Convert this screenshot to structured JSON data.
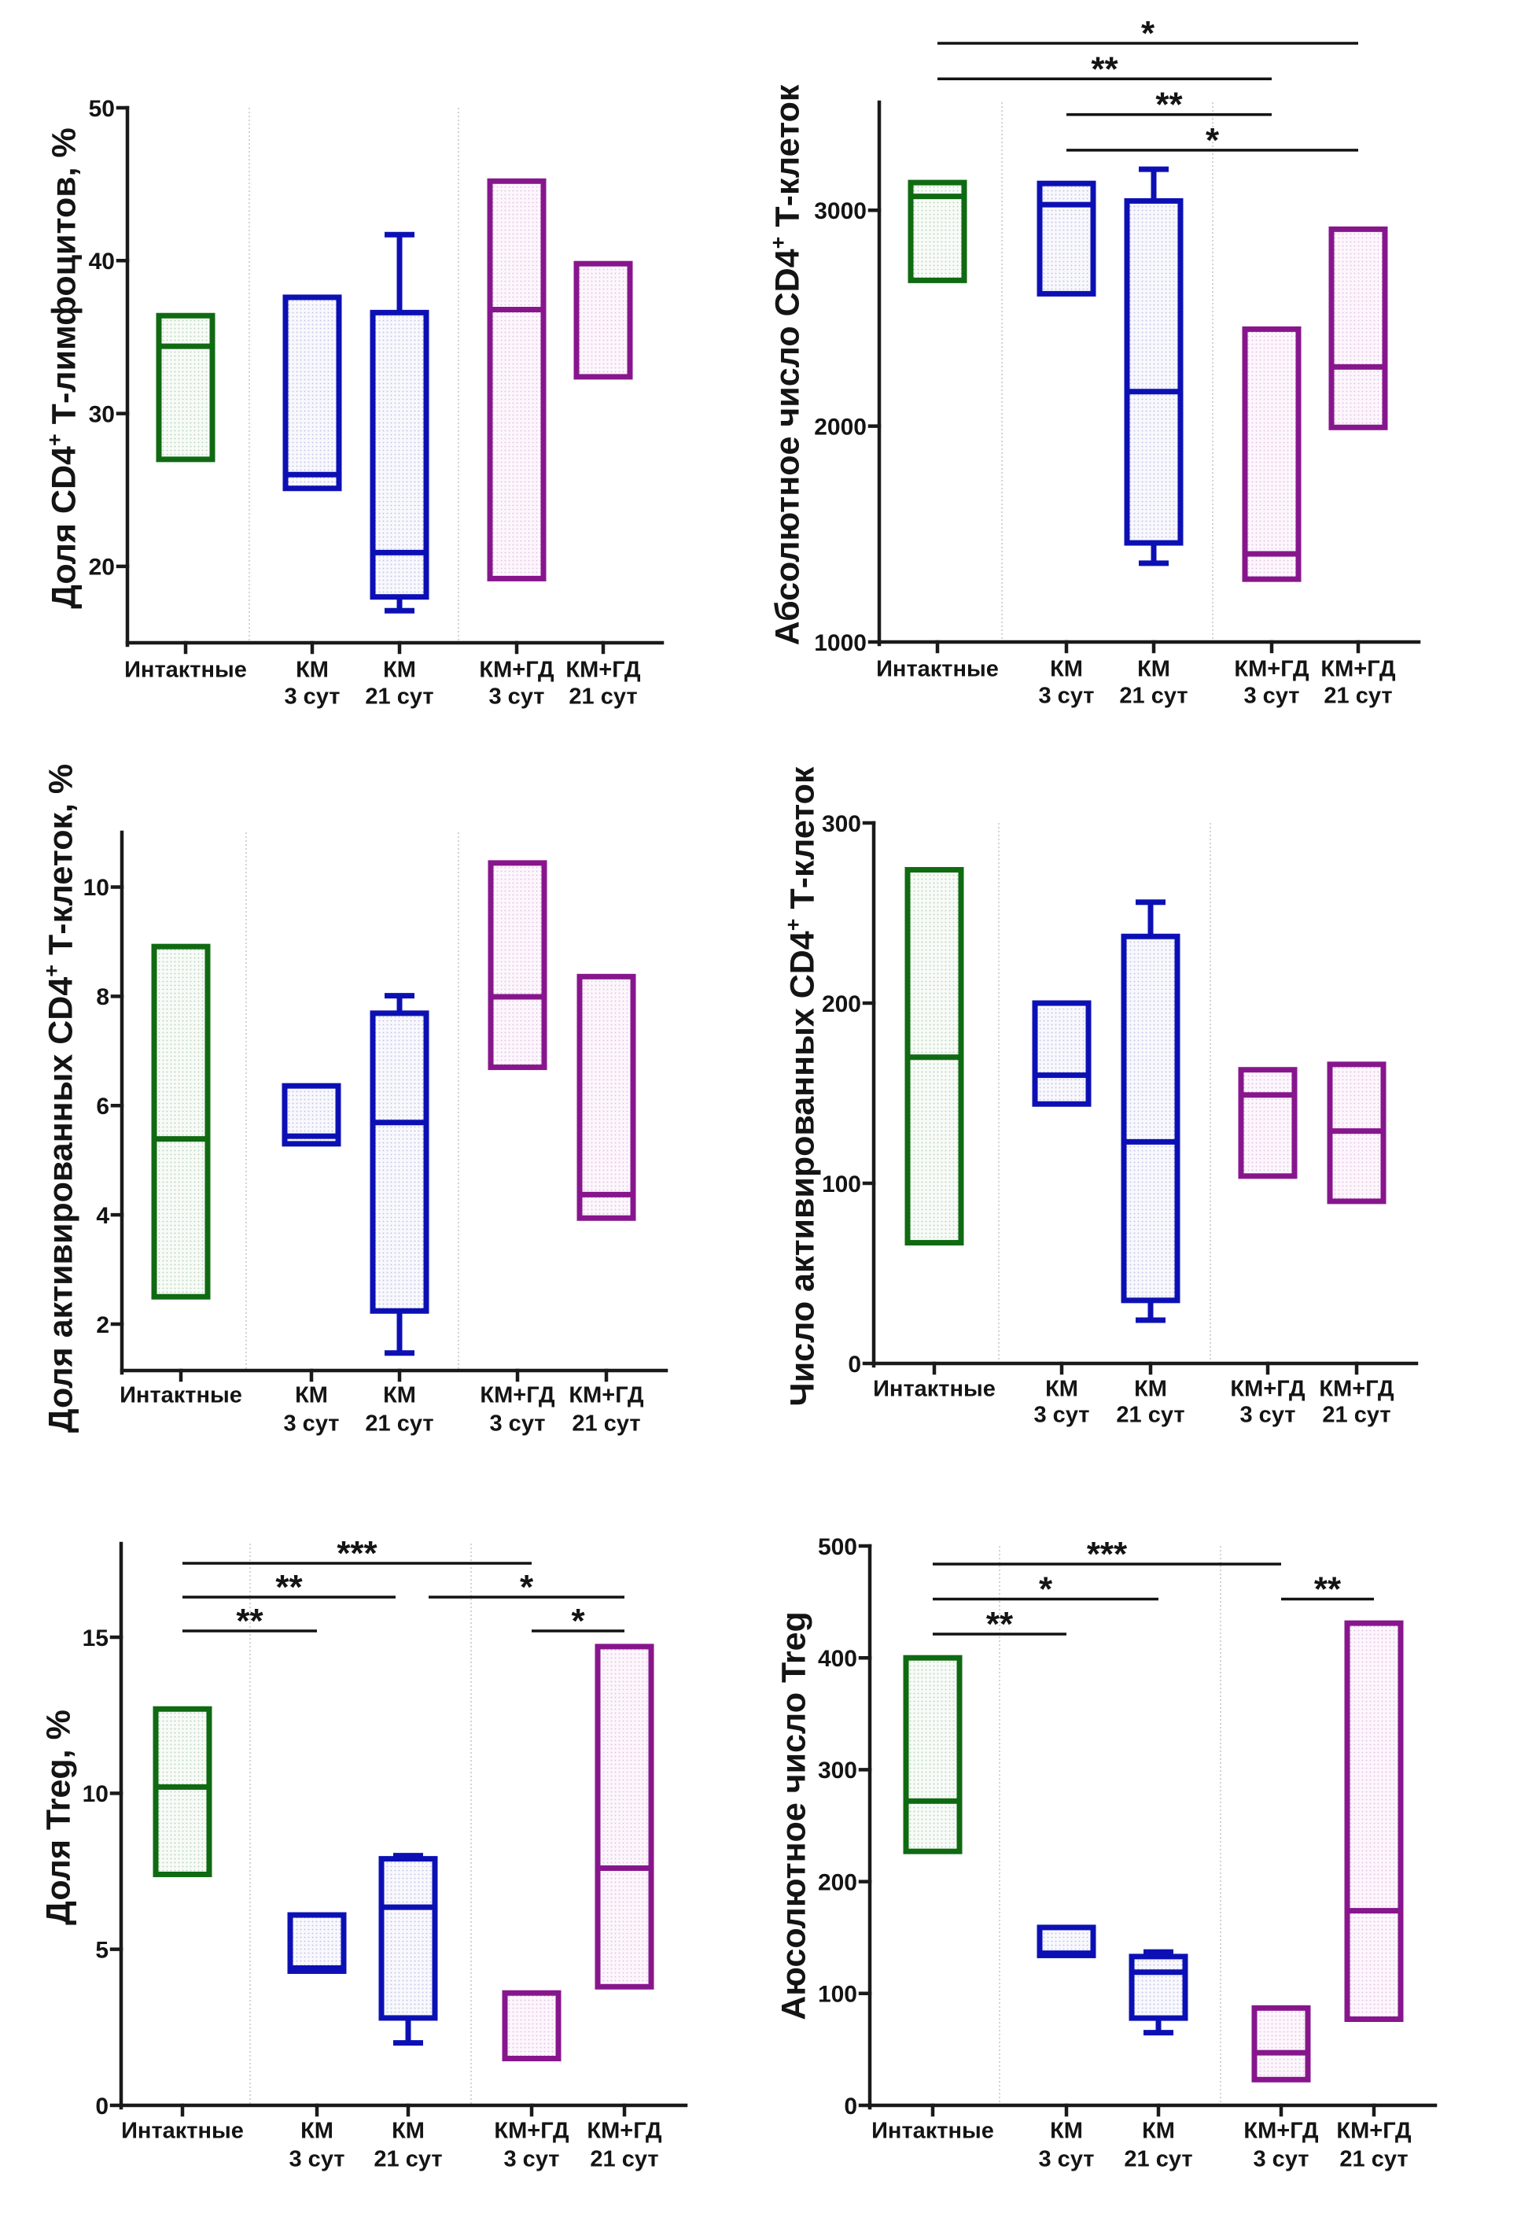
{
  "group_colors": {
    "intact": "#0f6a12",
    "km": "#0c10b4",
    "km_gd": "#87168d"
  },
  "chart_data": [
    {
      "type": "bar",
      "bar_style": "box-and-whisker",
      "title": "",
      "xlabel": "",
      "ylabel": {
        "main": "Доля CD4",
        "sup": "+",
        "rest": " Т-лимфоцитов, %"
      },
      "ylim": [
        15,
        50
      ],
      "yticks": [
        20,
        30,
        40,
        50
      ],
      "grid": false,
      "categories": [
        "Интактные",
        "КМ 3 сут",
        "КМ 21 сут",
        "КМ+ГД 3 сут",
        "КМ+ГД 21 сут"
      ],
      "category_label_lines": [
        [
          "Интактные",
          ""
        ],
        [
          "КМ",
          "3 сут"
        ],
        [
          "КМ",
          "21 сут"
        ],
        [
          "КМ+ГД",
          "3 сут"
        ],
        [
          "КМ+ГД",
          "21 сут"
        ]
      ],
      "boxes": [
        {
          "category": "Интактные",
          "color": "#0f6a12",
          "min": null,
          "q1": 27.0,
          "median": 34.4,
          "q3": 36.4,
          "max": null
        },
        {
          "category": "КМ 3 сут",
          "color": "#0c10b4",
          "min": null,
          "q1": 25.1,
          "median": 26.0,
          "q3": 37.6,
          "max": null
        },
        {
          "category": "КМ 21 сут",
          "color": "#0c10b4",
          "min": 17.1,
          "q1": 18.0,
          "median": 20.9,
          "q3": 36.6,
          "max": 41.7
        },
        {
          "category": "КМ+ГД 3 сут",
          "color": "#87168d",
          "min": null,
          "q1": 19.2,
          "median": 36.8,
          "q3": 45.2,
          "max": null
        },
        {
          "category": "КМ+ГД 21 сут",
          "color": "#87168d",
          "min": null,
          "q1": 32.4,
          "median": null,
          "q3": 39.8,
          "max": null
        }
      ],
      "significance": []
    },
    {
      "type": "bar",
      "bar_style": "box-and-whisker",
      "title": "",
      "xlabel": "",
      "ylabel": {
        "main": "Абсолютное число CD4",
        "sup": "+",
        "rest": " Т-клеток"
      },
      "ylim": [
        1000,
        3500
      ],
      "yticks": [
        1000,
        2000,
        3000
      ],
      "grid": false,
      "categories": [
        "Интактные",
        "КМ 3 сут",
        "КМ 21 сут",
        "КМ+ГД 3 сут",
        "КМ+ГД 21 сут"
      ],
      "category_label_lines": [
        [
          "Интактные",
          ""
        ],
        [
          "КМ",
          "3 сут"
        ],
        [
          "КМ",
          "21 сут"
        ],
        [
          "КМ+ГД",
          "3 сут"
        ],
        [
          "КМ+ГД",
          "21 сут"
        ]
      ],
      "boxes": [
        {
          "category": "Интактные",
          "color": "#0f6a12",
          "min": null,
          "q1": 2675,
          "median": 3064,
          "q3": 3128,
          "max": null
        },
        {
          "category": "КМ 3 сут",
          "color": "#0c10b4",
          "min": null,
          "q1": 2613,
          "median": 3026,
          "q3": 3124,
          "max": null
        },
        {
          "category": "КМ 21 сут",
          "color": "#0c10b4",
          "min": 1365,
          "q1": 1459,
          "median": 2160,
          "q3": 3043,
          "max": 3190
        },
        {
          "category": "КМ+ГД 3 сут",
          "color": "#87168d",
          "min": null,
          "q1": 1291,
          "median": 1408,
          "q3": 2449,
          "max": null
        },
        {
          "category": "КМ+ГД 21 сут",
          "color": "#87168d",
          "min": null,
          "q1": 1994,
          "median": 2274,
          "q3": 2912,
          "max": null
        }
      ],
      "significance": [
        {
          "from": 0,
          "to": 4,
          "level": 1,
          "label": "*"
        },
        {
          "from": 0,
          "to": 3,
          "level": 2,
          "label": "**"
        },
        {
          "from": 1,
          "to": 3,
          "level": 3,
          "label": "**"
        },
        {
          "from": 1,
          "to": 4,
          "level": 4,
          "label": "*"
        }
      ]
    },
    {
      "type": "bar",
      "bar_style": "box-and-whisker",
      "title": "",
      "xlabel": "",
      "ylabel": {
        "main": "Доля активированных CD4",
        "sup": "+",
        "rest": " Т-клеток, %"
      },
      "ylim": [
        1.15,
        11
      ],
      "yticks": [
        2,
        4,
        6,
        8,
        10
      ],
      "grid": false,
      "categories": [
        "Интактные",
        "КМ 3 сут",
        "КМ 21 сут",
        "КМ+ГД 3 сут",
        "КМ+ГД 21 сут"
      ],
      "category_label_lines": [
        [
          "Интактные",
          ""
        ],
        [
          "КМ",
          "3 сут"
        ],
        [
          "КМ",
          "21 сут"
        ],
        [
          "КМ+ГД",
          "3 сут"
        ],
        [
          "КМ+ГД",
          "21 сут"
        ]
      ],
      "boxes": [
        {
          "category": "Интактные",
          "color": "#0f6a12",
          "min": null,
          "q1": 2.5,
          "median": 5.39,
          "q3": 8.91,
          "max": null
        },
        {
          "category": "КМ 3 сут",
          "color": "#0c10b4",
          "min": null,
          "q1": 5.3,
          "median": 5.44,
          "q3": 6.36,
          "max": null
        },
        {
          "category": "КМ 21 сут",
          "color": "#0c10b4",
          "min": 1.47,
          "q1": 2.24,
          "median": 5.69,
          "q3": 7.69,
          "max": 8.01
        },
        {
          "category": "КМ+ГД 3 сут",
          "color": "#87168d",
          "min": null,
          "q1": 6.7,
          "median": 7.99,
          "q3": 10.44,
          "max": null
        },
        {
          "category": "КМ+ГД 21 сут",
          "color": "#87168d",
          "min": null,
          "q1": 3.94,
          "median": 4.37,
          "q3": 8.36,
          "max": null
        }
      ],
      "significance": []
    },
    {
      "type": "bar",
      "bar_style": "box-and-whisker",
      "title": "",
      "xlabel": "",
      "ylabel": {
        "main": "Число активированных CD4",
        "sup": "+",
        "rest": " Т-клеток"
      },
      "ylim": [
        0,
        300
      ],
      "yticks": [
        0,
        100,
        200,
        300
      ],
      "grid": false,
      "categories": [
        "Интактные",
        "КМ 3 сут",
        "КМ 21 сут",
        "КМ+ГД 3 сут",
        "КМ+ГД 21 сут"
      ],
      "category_label_lines": [
        [
          "Интактные",
          ""
        ],
        [
          "КМ",
          "3 сут"
        ],
        [
          "КМ",
          "21 сут"
        ],
        [
          "КМ+ГД",
          "3 сут"
        ],
        [
          "КМ+ГД",
          "21 сут"
        ]
      ],
      "boxes": [
        {
          "category": "Интактные",
          "color": "#0f6a12",
          "min": null,
          "q1": 67,
          "median": 170,
          "q3": 274,
          "max": null
        },
        {
          "category": "КМ 3 сут",
          "color": "#0c10b4",
          "min": null,
          "q1": 144,
          "median": 160,
          "q3": 200,
          "max": null
        },
        {
          "category": "КМ 21 сут",
          "color": "#0c10b4",
          "min": 24,
          "q1": 35,
          "median": 123,
          "q3": 237,
          "max": 256
        },
        {
          "category": "КМ+ГД 3 сут",
          "color": "#87168d",
          "min": null,
          "q1": 104,
          "median": 149,
          "q3": 163,
          "max": null
        },
        {
          "category": "КМ+ГД 21 сут",
          "color": "#87168d",
          "min": null,
          "q1": 90,
          "median": 129,
          "q3": 166,
          "max": null
        }
      ],
      "significance": []
    },
    {
      "type": "bar",
      "bar_style": "box-and-whisker",
      "title": "",
      "xlabel": "",
      "ylabel": {
        "main": "Доля Treg, %",
        "sup": "",
        "rest": ""
      },
      "ylim": [
        0,
        18
      ],
      "yticks": [
        0,
        5,
        10,
        15
      ],
      "grid": false,
      "categories": [
        "Интактные",
        "КМ 3 сут",
        "КМ 21 сут",
        "КМ+ГД 3 сут",
        "КМ+ГД 21 сут"
      ],
      "category_label_lines": [
        [
          "Интактные",
          ""
        ],
        [
          "КМ",
          "3 сут"
        ],
        [
          "КМ",
          "21 сут"
        ],
        [
          "КМ+ГД",
          "3 сут"
        ],
        [
          "КМ+ГД",
          "21 сут"
        ]
      ],
      "boxes": [
        {
          "category": "Интактные",
          "color": "#0f6a12",
          "min": null,
          "q1": 7.4,
          "median": 10.2,
          "q3": 12.7,
          "max": null
        },
        {
          "category": "КМ 3 сут",
          "color": "#0c10b4",
          "min": null,
          "q1": 4.3,
          "median": 4.4,
          "q3": 6.1,
          "max": null
        },
        {
          "category": "КМ 21 сут",
          "color": "#0c10b4",
          "min": 2.0,
          "q1": 2.8,
          "median": 6.35,
          "q3": 7.9,
          "max": 8.0
        },
        {
          "category": "КМ+ГД 3 сут",
          "color": "#87168d",
          "min": null,
          "q1": 1.5,
          "median": null,
          "q3": 3.6,
          "max": null
        },
        {
          "category": "КМ+ГД 21 сут",
          "color": "#87168d",
          "min": null,
          "q1": 3.8,
          "median": 7.6,
          "q3": 14.7,
          "max": null
        }
      ],
      "significance": [
        {
          "from": 0,
          "to": 3,
          "level": 1,
          "label": "***"
        },
        {
          "from": 0,
          "to": 2,
          "level": 2,
          "label": "**"
        },
        {
          "from": 2,
          "to": 4,
          "level": 2,
          "label": "*"
        },
        {
          "from": 0,
          "to": 1,
          "level": 3,
          "label": "**"
        },
        {
          "from": 3,
          "to": 4,
          "level": 3,
          "label": "*"
        }
      ]
    },
    {
      "type": "bar",
      "bar_style": "box-and-whisker",
      "title": "",
      "xlabel": "",
      "ylabel": {
        "main": "Аюсолютное число Treg",
        "sup": "",
        "rest": ""
      },
      "ylim": [
        0,
        500
      ],
      "yticks": [
        0,
        100,
        200,
        300,
        400,
        500
      ],
      "grid": false,
      "categories": [
        "Интактные",
        "КМ 3 сут",
        "КМ 21 сут",
        "КМ+ГД 3 сут",
        "КМ+ГД 21 сут"
      ],
      "category_label_lines": [
        [
          "Интактные",
          ""
        ],
        [
          "КМ",
          "3 сут"
        ],
        [
          "КМ",
          "21 сут"
        ],
        [
          "КМ+ГД",
          "3 сут"
        ],
        [
          "КМ+ГД",
          "21 сут"
        ]
      ],
      "boxes": [
        {
          "category": "Интактные",
          "color": "#0f6a12",
          "min": null,
          "q1": 227,
          "median": 272,
          "q3": 400,
          "max": null
        },
        {
          "category": "КМ 3 сут",
          "color": "#0c10b4",
          "min": null,
          "q1": 134,
          "median": 136,
          "q3": 159,
          "max": null
        },
        {
          "category": "КМ 21 сут",
          "color": "#0c10b4",
          "min": 65,
          "q1": 78,
          "median": 119,
          "q3": 133,
          "max": 137
        },
        {
          "category": "КМ+ГД 3 сут",
          "color": "#87168d",
          "min": null,
          "q1": 23,
          "median": 47,
          "q3": 87,
          "max": null
        },
        {
          "category": "КМ+ГД 21 сут",
          "color": "#87168d",
          "min": null,
          "q1": 77,
          "median": 174,
          "q3": 431,
          "max": null
        }
      ],
      "significance": [
        {
          "from": 0,
          "to": 3,
          "level": 1,
          "label": "***"
        },
        {
          "from": 0,
          "to": 2,
          "level": 2,
          "label": "*"
        },
        {
          "from": 0,
          "to": 1,
          "level": 3,
          "label": "**"
        },
        {
          "from": 3,
          "to": 4,
          "level": 2,
          "label": "**"
        }
      ]
    }
  ]
}
